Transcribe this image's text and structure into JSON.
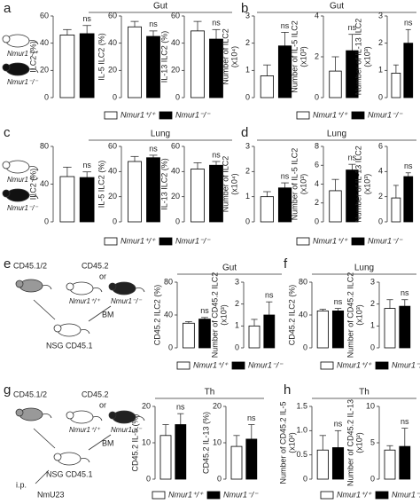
{
  "panel_labels": [
    "a",
    "b",
    "c",
    "d",
    "e",
    "f",
    "g",
    "h"
  ],
  "headers": [
    "Gut",
    "Gut",
    "Lung",
    "Lung",
    "Gut",
    "Lung",
    "Th",
    "Th"
  ],
  "legend": [
    "Nmur1⁺/⁺",
    "Nmur1⁻/⁻"
  ],
  "mouse_labels": [
    "Nmur1⁺/⁺",
    "Nmur1⁻/⁻"
  ],
  "transfer_diagram": {
    "donor_mixed": "CD45.1/2",
    "donor_single": "CD45.2",
    "or": "or",
    "wt": "Nmur1⁺/⁺",
    "ko": "Nmur1⁻/⁻",
    "bm": "BM",
    "recipient": "NSG CD45.1"
  },
  "injection": {
    "route": "i.p.",
    "agent": "NmU23"
  },
  "chart_data": [
    {
      "type": "bar",
      "ylabel": [
        "ILC2 (%)"
      ],
      "values": [
        46,
        47
      ],
      "errors": [
        4,
        6
      ],
      "ylim": [
        0,
        60
      ],
      "yticks": [
        0,
        20,
        40,
        60
      ],
      "annotation": "ns",
      "colors": [
        "#ffffff",
        "#000000"
      ]
    },
    {
      "type": "bar",
      "ylabel": [
        "IL-5 ILC2 (%)"
      ],
      "values": [
        52,
        45
      ],
      "errors": [
        4,
        4
      ],
      "ylim": [
        0,
        60
      ],
      "yticks": [
        0,
        20,
        40,
        60
      ],
      "annotation": "ns",
      "colors": [
        "#ffffff",
        "#000000"
      ]
    },
    {
      "type": "bar",
      "ylabel": [
        "IL-13 ILC2 (%)"
      ],
      "values": [
        49,
        43
      ],
      "errors": [
        7,
        7
      ],
      "ylim": [
        0,
        60
      ],
      "yticks": [
        0,
        20,
        40,
        60
      ],
      "annotation": "ns",
      "colors": [
        "#ffffff",
        "#000000"
      ]
    },
    {
      "type": "bar",
      "ylabel": [
        "Number of ILC2",
        "(x10⁴)"
      ],
      "values": [
        0.8,
        1.9
      ],
      "errors": [
        0.4,
        0.5
      ],
      "ylim": [
        0,
        3
      ],
      "yticks": [
        0,
        1,
        2,
        3
      ],
      "annotation": "ns",
      "colors": [
        "#ffffff",
        "#000000"
      ]
    },
    {
      "type": "bar",
      "ylabel": [
        "Number of IL-5 ILC2",
        "(x10³)"
      ],
      "values": [
        1.3,
        2.3
      ],
      "errors": [
        0.7,
        0.8
      ],
      "ylim": [
        0,
        4
      ],
      "yticks": [
        0,
        2,
        4
      ],
      "annotation": "ns",
      "colors": [
        "#ffffff",
        "#000000"
      ]
    },
    {
      "type": "bar",
      "ylabel": [
        "Number of IL-13 ILC2",
        "(x10³)"
      ],
      "values": [
        0.9,
        2.0
      ],
      "errors": [
        0.3,
        0.5
      ],
      "ylim": [
        0,
        3
      ],
      "yticks": [
        0,
        1,
        2,
        3
      ],
      "annotation": "ns",
      "colors": [
        "#ffffff",
        "#000000"
      ]
    },
    {
      "type": "bar",
      "ylabel": [
        "ILC2 (%)"
      ],
      "values": [
        48,
        47
      ],
      "errors": [
        10,
        6
      ],
      "ylim": [
        0,
        80
      ],
      "yticks": [
        0,
        40,
        80
      ],
      "annotation": "ns",
      "colors": [
        "#ffffff",
        "#000000"
      ]
    },
    {
      "type": "bar",
      "ylabel": [
        "IL-5 ILC2 (%)"
      ],
      "values": [
        48,
        51
      ],
      "errors": [
        4,
        2
      ],
      "ylim": [
        0,
        60
      ],
      "yticks": [
        0,
        20,
        40,
        60
      ],
      "annotation": "ns",
      "colors": [
        "#ffffff",
        "#000000"
      ]
    },
    {
      "type": "bar",
      "ylabel": [
        "IL-13 ILC2 (%)"
      ],
      "values": [
        42,
        45
      ],
      "errors": [
        5,
        3
      ],
      "ylim": [
        0,
        60
      ],
      "yticks": [
        0,
        20,
        40,
        60
      ],
      "annotation": "ns",
      "colors": [
        "#ffffff",
        "#000000"
      ]
    },
    {
      "type": "bar",
      "ylabel": [
        "Number of ILC2",
        "(x10⁴)"
      ],
      "values": [
        1.0,
        1.35
      ],
      "errors": [
        0.2,
        0.2
      ],
      "ylim": [
        0,
        3
      ],
      "yticks": [
        0,
        1,
        2,
        3
      ],
      "annotation": "ns",
      "colors": [
        "#ffffff",
        "#000000"
      ]
    },
    {
      "type": "bar",
      "ylabel": [
        "Number of IL-5 ILC2",
        "(x10³)"
      ],
      "values": [
        3.3,
        5.5
      ],
      "errors": [
        1.2,
        0.6
      ],
      "ylim": [
        0,
        8
      ],
      "yticks": [
        0,
        2,
        4,
        6,
        8
      ],
      "annotation": "ns",
      "colors": [
        "#ffffff",
        "#000000"
      ]
    },
    {
      "type": "bar",
      "ylabel": [
        "Number of IL-13 ILC2",
        "(x10³)"
      ],
      "values": [
        1.9,
        3.6
      ],
      "errors": [
        1.0,
        0.3
      ],
      "ylim": [
        0,
        6
      ],
      "yticks": [
        0,
        2,
        4,
        6
      ],
      "annotation": "ns",
      "colors": [
        "#ffffff",
        "#000000"
      ]
    },
    {
      "type": "bar",
      "ylabel": [
        "CD45.2 ILC2 (%)"
      ],
      "values": [
        30,
        35
      ],
      "errors": [
        2,
        2
      ],
      "ylim": [
        0,
        80
      ],
      "yticks": [
        0,
        40,
        80
      ],
      "annotation": "ns",
      "colors": [
        "#ffffff",
        "#000000"
      ]
    },
    {
      "type": "bar",
      "ylabel": [
        "Number of CD45.2 ILC2",
        "(x10³)"
      ],
      "values": [
        1.0,
        1.5
      ],
      "errors": [
        0.3,
        0.6
      ],
      "ylim": [
        0,
        3
      ],
      "yticks": [
        0,
        1,
        2,
        3
      ],
      "annotation": "ns",
      "colors": [
        "#ffffff",
        "#000000"
      ]
    },
    {
      "type": "bar",
      "ylabel": [
        "CD45.2 ILC2 (%)"
      ],
      "values": [
        45,
        45
      ],
      "errors": [
        2,
        3
      ],
      "ylim": [
        0,
        80
      ],
      "yticks": [
        0,
        40,
        80
      ],
      "annotation": "ns",
      "colors": [
        "#ffffff",
        "#000000"
      ]
    },
    {
      "type": "bar",
      "ylabel": [
        "Number of CD45.2 ILC2",
        "(x10³)"
      ],
      "values": [
        1.8,
        1.9
      ],
      "errors": [
        0.4,
        0.3
      ],
      "ylim": [
        0,
        3
      ],
      "yticks": [
        0,
        1,
        2,
        3
      ],
      "annotation": "ns",
      "colors": [
        "#ffffff",
        "#000000"
      ]
    },
    {
      "type": "bar",
      "ylabel": [
        "CD45.2 IL-5 (%)"
      ],
      "values": [
        12,
        15
      ],
      "errors": [
        3,
        3
      ],
      "ylim": [
        0,
        20
      ],
      "yticks": [
        0,
        10,
        20
      ],
      "annotation": "ns",
      "colors": [
        "#ffffff",
        "#000000"
      ]
    },
    {
      "type": "bar",
      "ylabel": [
        "CD45.2 IL-13 (%)"
      ],
      "values": [
        9,
        11
      ],
      "errors": [
        3,
        4
      ],
      "ylim": [
        0,
        20
      ],
      "yticks": [
        0,
        10,
        20
      ],
      "annotation": "ns",
      "colors": [
        "#ffffff",
        "#000000"
      ]
    },
    {
      "type": "bar",
      "ylabel": [
        "Number of CD45.2 IL-5",
        "(x10²)"
      ],
      "values": [
        0.6,
        0.65
      ],
      "errors": [
        0.3,
        0.35
      ],
      "ylim": [
        0,
        1.5
      ],
      "yticks": [
        0,
        0.5,
        {
          "value": 1,
          "label": "1.0"
        },
        1.5
      ],
      "annotation": "ns",
      "colors": [
        "#ffffff",
        "#000000"
      ]
    },
    {
      "type": "bar",
      "ylabel": [
        "Number of CD45.2 IL-13",
        "(x10²)"
      ],
      "values": [
        4,
        4.5
      ],
      "errors": [
        0.6,
        2.5
      ],
      "ylim": [
        0,
        10
      ],
      "yticks": [
        0,
        5,
        10
      ],
      "annotation": "ns",
      "colors": [
        "#ffffff",
        "#000000"
      ]
    }
  ]
}
